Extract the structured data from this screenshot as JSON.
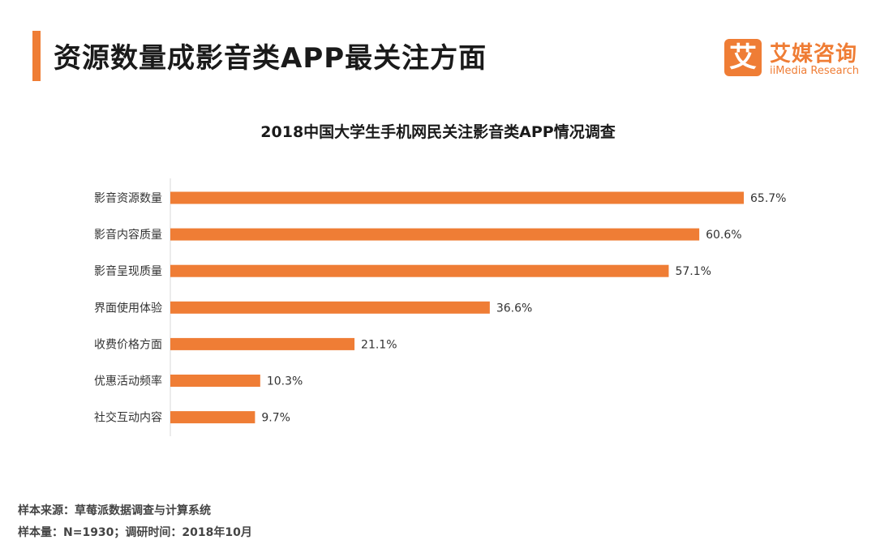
{
  "header": {
    "title": "资源数量成影音类APP最关注方面"
  },
  "logo": {
    "mark": "艾",
    "name_cn": "艾媒咨询",
    "name_en": "iiMedia Research"
  },
  "chart_data": {
    "type": "bar",
    "orientation": "horizontal",
    "title": "2018中国大学生手机网民关注影音类APP情况调查",
    "categories": [
      "影音资源数量",
      "影音内容质量",
      "影音呈现质量",
      "界面使用体验",
      "收费价格方面",
      "优惠活动频率",
      "社交互动内容"
    ],
    "values": [
      65.7,
      60.6,
      57.1,
      36.6,
      21.1,
      10.3,
      9.7
    ],
    "value_labels": [
      "65.7%",
      "60.6%",
      "57.1%",
      "36.6%",
      "21.1%",
      "10.3%",
      "9.7%"
    ],
    "xlim": [
      0,
      65.7
    ],
    "grid": false,
    "bar_color": "#ef7d35"
  },
  "footer": {
    "source": "样本来源：草莓派数据调查与计算系统",
    "sample": "样本量：N=1930；调研时间：2018年10月"
  }
}
